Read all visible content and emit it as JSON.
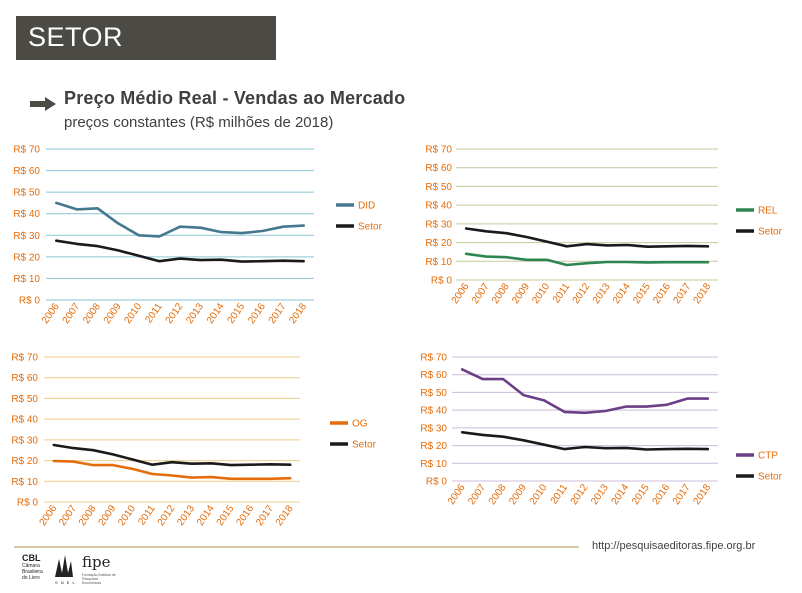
{
  "header": {
    "title": "SETOR"
  },
  "slide": {
    "title": "Preço Médio Real - Vendas ao Mercado",
    "subtitle": "preços constantes (R$ milhões de 2018)"
  },
  "footer": {
    "url": "http://pesquisaeditoras.fipe.org.br",
    "logos": {
      "cbl_mark": "CBL",
      "cbl_text": "Câmara Brasileira do Livro",
      "snel_text": "S N E L",
      "fipe_mark": "fipe",
      "fipe_text": "Fundação Instituto de Pesquisas Econômicas"
    }
  },
  "colors": {
    "DID": "#45788f",
    "REL": "#2e8551",
    "OG": "#e46c0a",
    "CTP": "#6a3f86",
    "Setor": "#1a1a1a",
    "grid_blue": "#8ac6d6",
    "grid_olive": "#c6c8a0",
    "grid_tan": "#f0cc88",
    "grid_lilac": "#ccbcd8",
    "axis_text": "#e46c0a"
  },
  "chart_data": [
    {
      "type": "line",
      "id": "did",
      "x": [
        "2006",
        "2007",
        "2008",
        "2009",
        "2010",
        "2011",
        "2012",
        "2013",
        "2014",
        "2015",
        "2016",
        "2017",
        "2018"
      ],
      "ylim": [
        0,
        70
      ],
      "yticks": [
        "R$ 0",
        "R$ 10",
        "R$ 20",
        "R$ 30",
        "R$ 40",
        "R$ 50",
        "R$ 60",
        "R$ 70"
      ],
      "grid_color": "#8ac6d6",
      "legend_position": "right",
      "series": [
        {
          "name": "DID",
          "color": "#45788f",
          "values": [
            45,
            42,
            42.5,
            35.5,
            30,
            29.5,
            34,
            33.5,
            31.5,
            31,
            32,
            34,
            34.5
          ]
        },
        {
          "name": "Setor",
          "color": "#1a1a1a",
          "values": [
            27.5,
            26,
            25,
            23,
            20.5,
            18,
            19.2,
            18.5,
            18.7,
            17.8,
            18,
            18.2,
            18
          ]
        }
      ]
    },
    {
      "type": "line",
      "id": "rel",
      "x": [
        "2006",
        "2007",
        "2008",
        "2009",
        "2010",
        "2011",
        "2012",
        "2013",
        "2014",
        "2015",
        "2016",
        "2017",
        "2018"
      ],
      "ylim": [
        0,
        70
      ],
      "yticks": [
        "R$ 0",
        "R$ 10",
        "R$ 20",
        "R$ 30",
        "R$ 40",
        "R$ 50",
        "R$ 60",
        "R$ 70"
      ],
      "grid_color": "#c6c8a0",
      "legend_position": "right",
      "series": [
        {
          "name": "REL",
          "color": "#2e8551",
          "values": [
            14,
            12.5,
            12.2,
            10.8,
            10.8,
            8,
            9,
            9.6,
            9.6,
            9.4,
            9.5,
            9.5,
            9.5
          ]
        },
        {
          "name": "Setor",
          "color": "#1a1a1a",
          "values": [
            27.5,
            26,
            25,
            23,
            20.5,
            18,
            19.2,
            18.5,
            18.7,
            17.8,
            18,
            18.2,
            18
          ]
        }
      ]
    },
    {
      "type": "line",
      "id": "og",
      "x": [
        "2006",
        "2007",
        "2008",
        "2009",
        "2010",
        "2011",
        "2012",
        "2013",
        "2014",
        "2015",
        "2016",
        "2017",
        "2018"
      ],
      "ylim": [
        0,
        70
      ],
      "yticks": [
        "R$ 0",
        "R$ 10",
        "R$ 20",
        "R$ 30",
        "R$ 40",
        "R$ 50",
        "R$ 60",
        "R$ 70"
      ],
      "grid_color": "#f0cc88",
      "legend_position": "right",
      "series": [
        {
          "name": "OG",
          "color": "#e46c0a",
          "values": [
            19.8,
            19.5,
            17.8,
            17.8,
            16,
            13.5,
            12.8,
            11.8,
            12,
            11.2,
            11.2,
            11.2,
            11.5
          ]
        },
        {
          "name": "Setor",
          "color": "#1a1a1a",
          "values": [
            27.5,
            26,
            25,
            23,
            20.5,
            18,
            19.2,
            18.5,
            18.7,
            17.8,
            18,
            18.2,
            18
          ]
        }
      ]
    },
    {
      "type": "line",
      "id": "ctp",
      "x": [
        "2006",
        "2007",
        "2008",
        "2009",
        "2010",
        "2011",
        "2012",
        "2013",
        "2014",
        "2015",
        "2016",
        "2017",
        "2018"
      ],
      "ylim": [
        0,
        70
      ],
      "yticks": [
        "R$ 0",
        "R$ 10",
        "R$ 20",
        "R$ 30",
        "R$ 40",
        "R$ 50",
        "R$ 60",
        "R$ 70"
      ],
      "grid_color": "#ccbcd8",
      "legend_position": "right",
      "series": [
        {
          "name": "CTP",
          "color": "#6a3f86",
          "values": [
            63,
            57.5,
            57.5,
            48.5,
            45.5,
            39,
            38.5,
            39.5,
            42,
            42,
            43,
            46.5,
            46.5
          ]
        },
        {
          "name": "Setor",
          "color": "#1a1a1a",
          "values": [
            27.5,
            26,
            25,
            23,
            20.5,
            18,
            19.2,
            18.5,
            18.7,
            17.8,
            18,
            18.2,
            18
          ]
        }
      ]
    }
  ]
}
